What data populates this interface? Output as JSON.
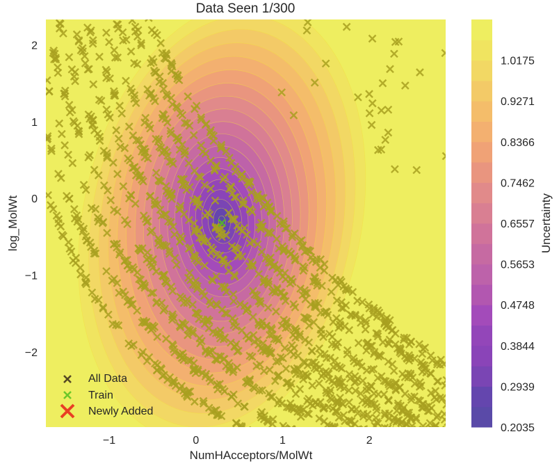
{
  "chart_data": {
    "type": "contour+scatter",
    "title": "Data Seen 1/300",
    "xlabel": "NumHAcceptors/MolWt",
    "ylabel": "log_MolWt",
    "xlim": [
      -1.73,
      2.88
    ],
    "ylim": [
      -2.98,
      2.33
    ],
    "xticks": [
      -1,
      0,
      1,
      2
    ],
    "xtick_labels": [
      "−1",
      "0",
      "1",
      "2"
    ],
    "yticks": [
      2,
      1,
      0,
      -1,
      -2
    ],
    "ytick_labels": [
      "2",
      "1",
      "0",
      "−1",
      "−2"
    ],
    "grid": false,
    "colorbar": {
      "label": "Uncertainty",
      "range": [
        0.2035,
        1.108
      ],
      "ticks": [
        0.2035,
        0.2939,
        0.3844,
        0.4748,
        0.5653,
        0.6557,
        0.7462,
        0.8366,
        0.9271,
        1.0175
      ],
      "tick_labels": [
        "0.2035",
        "0.2939",
        "0.3844",
        "0.4748",
        "0.5653",
        "0.6557",
        "0.7462",
        "0.8366",
        "0.9271",
        "1.0175"
      ],
      "colors": [
        "#5a4aa8",
        "#6446ae",
        "#7a45b4",
        "#8a44b8",
        "#9346b9",
        "#a34bba",
        "#b257b0",
        "#bd62aa",
        "#c66aa2",
        "#d0739a",
        "#d97f92",
        "#e18a8a",
        "#e9957f",
        "#f0a276",
        "#f3b070",
        "#f4bd6a",
        "#f3ca67",
        "#f2d864",
        "#f0e460",
        "#eeee60"
      ]
    },
    "contour_center": [
      0.3,
      -0.3
    ],
    "train_points": [
      {
        "x": 0.3,
        "y": -0.32
      }
    ],
    "newly_added_points": [],
    "legend": {
      "placement": "lower-left",
      "entries": [
        {
          "label": "All Data",
          "color": "#3a2a1a",
          "marker": "x"
        },
        {
          "label": "Train",
          "color": "#55c020",
          "marker": "x"
        },
        {
          "label": "Newly Added",
          "color": "#e8201a",
          "marker": "X"
        }
      ]
    },
    "scatter_color": "#a8a020"
  }
}
